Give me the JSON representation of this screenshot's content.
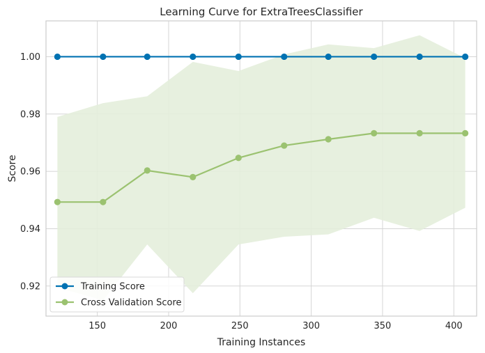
{
  "chart_data": {
    "type": "line",
    "title": "Learning Curve for ExtraTreesClassifier",
    "xlabel": "Training Instances",
    "ylabel": "Score",
    "xlim": [
      114,
      416
    ],
    "ylim": [
      0.9095,
      1.0125
    ],
    "xticks": [
      150,
      200,
      250,
      300,
      350,
      400
    ],
    "yticks": [
      0.92,
      0.94,
      0.96,
      0.98,
      1.0
    ],
    "ytick_labels": [
      "0.92",
      "0.94",
      "0.96",
      "0.98",
      "1.00"
    ],
    "grid": true,
    "legend": "lower-left",
    "x": [
      122,
      154,
      185,
      217,
      249,
      281,
      312,
      344,
      376,
      408
    ],
    "series": [
      {
        "name": "Training Score",
        "color": "#0072b2",
        "values": [
          1.0,
          1.0,
          1.0,
          1.0,
          1.0,
          1.0,
          1.0,
          1.0,
          1.0,
          1.0
        ],
        "lower": [
          1.0,
          1.0,
          1.0,
          1.0,
          1.0,
          1.0,
          1.0,
          1.0,
          1.0,
          1.0
        ],
        "upper": [
          1.0,
          1.0,
          1.0,
          1.0,
          1.0,
          1.0,
          1.0,
          1.0,
          1.0,
          1.0
        ]
      },
      {
        "name": "Cross Validation Score",
        "color": "#9bc270",
        "band_color": "#e4eedb",
        "values": [
          0.9493,
          0.9493,
          0.9603,
          0.958,
          0.9647,
          0.969,
          0.9712,
          0.9733,
          0.9733,
          0.9733
        ],
        "lower": [
          0.9195,
          0.915,
          0.9345,
          0.9175,
          0.9345,
          0.9372,
          0.938,
          0.9438,
          0.9392,
          0.9473
        ],
        "upper": [
          0.979,
          0.9838,
          0.9862,
          0.9982,
          0.995,
          1.0008,
          1.0043,
          1.003,
          1.0075,
          0.9995
        ]
      }
    ]
  }
}
